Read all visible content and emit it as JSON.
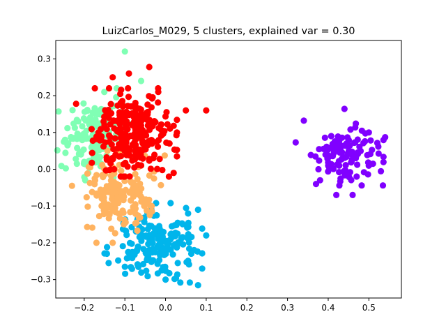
{
  "chart_data": {
    "type": "scatter",
    "title": "LuizCarlos_M029, 5 clusters, explained var = 0.30",
    "xlabel": "",
    "ylabel": "",
    "xlim": [
      -0.27,
      0.58
    ],
    "ylim": [
      -0.35,
      0.35
    ],
    "xticks": [
      -0.2,
      -0.1,
      0.0,
      0.1,
      0.2,
      0.3,
      0.4,
      0.5
    ],
    "yticks": [
      -0.3,
      -0.2,
      -0.1,
      0.0,
      0.1,
      0.2,
      0.3
    ],
    "grid": false,
    "legend": "none",
    "series": [
      {
        "color": "#8000ff",
        "center": [
          0.44,
          0.04
        ],
        "spread": [
          0.04,
          0.035
        ],
        "count": 110,
        "points": [
          [
            0.44,
            0.164
          ],
          [
            0.54,
            0.087
          ],
          [
            0.34,
            0.132
          ],
          [
            0.32,
            0.073
          ],
          [
            0.37,
            -0.04
          ],
          [
            0.42,
            -0.07
          ],
          [
            0.46,
            -0.07
          ],
          [
            0.51,
            0.015
          ],
          [
            0.38,
            -0.03
          ],
          [
            0.5,
            0.1
          ],
          [
            0.47,
            -0.02
          ],
          [
            0.4,
            0.01
          ]
        ]
      },
      {
        "color": "#00b5eb",
        "center": [
          -0.03,
          -0.2
        ],
        "spread": [
          0.05,
          0.045
        ],
        "count": 170,
        "points": [
          [
            -0.1,
            -0.265
          ],
          [
            0.08,
            -0.315
          ],
          [
            0.0,
            -0.3
          ],
          [
            0.1,
            -0.18
          ],
          [
            0.09,
            -0.27
          ],
          [
            0.08,
            -0.11
          ],
          [
            0.03,
            -0.255
          ],
          [
            -0.14,
            -0.255
          ]
        ]
      },
      {
        "color": "#80ffb4",
        "center": [
          -0.17,
          0.09
        ],
        "spread": [
          0.04,
          0.05
        ],
        "count": 150,
        "points": [
          [
            -0.1,
            0.32
          ],
          [
            -0.25,
            0.075
          ],
          [
            -0.2,
            0.02
          ],
          [
            -0.12,
            0.22
          ],
          [
            -0.06,
            0.24
          ],
          [
            -0.19,
            -0.01
          ]
        ]
      },
      {
        "color": "#ffb360",
        "center": [
          -0.11,
          -0.07
        ],
        "spread": [
          0.045,
          0.05
        ],
        "count": 160,
        "points": [
          [
            -0.23,
            -0.045
          ],
          [
            -0.17,
            -0.2
          ],
          [
            -0.13,
            -0.2
          ],
          [
            -0.12,
            -0.04
          ],
          [
            -0.06,
            0.01
          ]
        ]
      },
      {
        "color": "#ff0000",
        "center": [
          -0.08,
          0.1
        ],
        "spread": [
          0.045,
          0.05
        ],
        "count": 260,
        "points": [
          [
            -0.04,
            0.278
          ],
          [
            -0.13,
            0.25
          ],
          [
            -0.09,
            0.26
          ],
          [
            0.1,
            0.16
          ],
          [
            0.05,
            0.16
          ],
          [
            -0.22,
            0.178
          ],
          [
            -0.03,
            0.03
          ],
          [
            0.02,
            -0.01
          ]
        ]
      }
    ]
  }
}
